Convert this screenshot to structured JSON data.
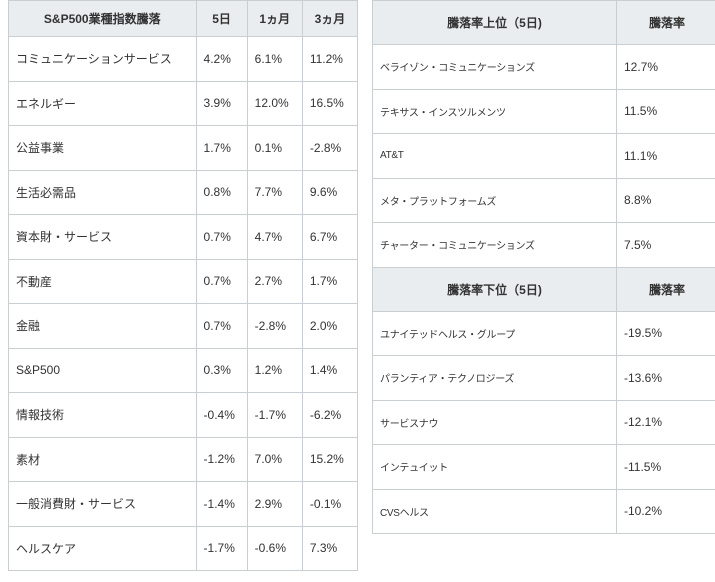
{
  "sector_table": {
    "headers": [
      "S&P500業種指数騰落",
      "5日",
      "1ヵ月",
      "3ヵ月"
    ],
    "rows": [
      [
        "コミュニケーションサービス",
        "4.2%",
        "6.1%",
        "11.2%"
      ],
      [
        "エネルギー",
        "3.9%",
        "12.0%",
        "16.5%"
      ],
      [
        "公益事業",
        "1.7%",
        "0.1%",
        "-2.8%"
      ],
      [
        "生活必需品",
        "0.8%",
        "7.7%",
        "9.6%"
      ],
      [
        "資本財・サービス",
        "0.7%",
        "4.7%",
        "6.7%"
      ],
      [
        "不動産",
        "0.7%",
        "2.7%",
        "1.7%"
      ],
      [
        "金融",
        "0.7%",
        "-2.8%",
        "2.0%"
      ],
      [
        "S&P500",
        "0.3%",
        "1.2%",
        "1.4%"
      ],
      [
        "情報技術",
        "-0.4%",
        "-1.7%",
        "-6.2%"
      ],
      [
        "素材",
        "-1.2%",
        "7.0%",
        "15.2%"
      ],
      [
        "一般消費財・サービス",
        "-1.4%",
        "2.9%",
        "-0.1%"
      ],
      [
        "ヘルスケア",
        "-1.7%",
        "-0.6%",
        "7.3%"
      ]
    ]
  },
  "top_table": {
    "headers": [
      "騰落率上位（5日)",
      "騰落率"
    ],
    "rows": [
      [
        "ベライゾン・コミュニケーションズ",
        "12.7%"
      ],
      [
        "テキサス・インスツルメンツ",
        "11.5%"
      ],
      [
        "AT&T",
        "11.1%"
      ],
      [
        "メタ・プラットフォームズ",
        "8.8%"
      ],
      [
        "チャーター・コミュニケーションズ",
        "7.5%"
      ]
    ]
  },
  "bottom_table": {
    "headers": [
      "騰落率下位（5日)",
      "騰落率"
    ],
    "rows": [
      [
        "ユナイテッドヘルス・グループ",
        "-19.5%"
      ],
      [
        "パランティア・テクノロジーズ",
        "-13.6%"
      ],
      [
        "サービスナウ",
        "-12.1%"
      ],
      [
        "インテュイット",
        "-11.5%"
      ],
      [
        "CVSヘルス",
        "-10.2%"
      ]
    ]
  }
}
